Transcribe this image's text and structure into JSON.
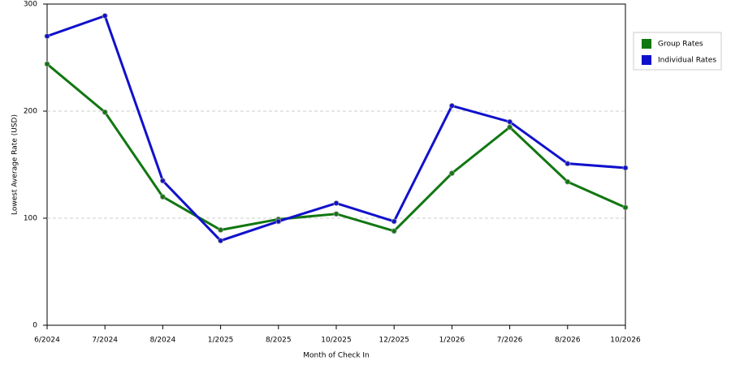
{
  "chart_data": {
    "type": "line",
    "x_label": "Month of Check In",
    "y_label": "Lowest Average Rate (USD)",
    "categories": [
      "6/2024",
      "7/2024",
      "8/2024",
      "1/2025",
      "8/2025",
      "10/2025",
      "12/2025",
      "1/2026",
      "7/2026",
      "8/2026",
      "10/2026"
    ],
    "series": [
      {
        "name": "Group Rates",
        "color": "#117711",
        "values": [
          244,
          199,
          120,
          89,
          99,
          104,
          88,
          142,
          185,
          134,
          110
        ]
      },
      {
        "name": "Individual Rates",
        "color": "#1111cc",
        "values": [
          270,
          289,
          135,
          79,
          97,
          114,
          97,
          205,
          190,
          151,
          147
        ]
      }
    ],
    "ylim": [
      0,
      300
    ],
    "yticks": [
      0,
      100,
      200,
      300
    ],
    "grid": true,
    "legend": "right"
  }
}
